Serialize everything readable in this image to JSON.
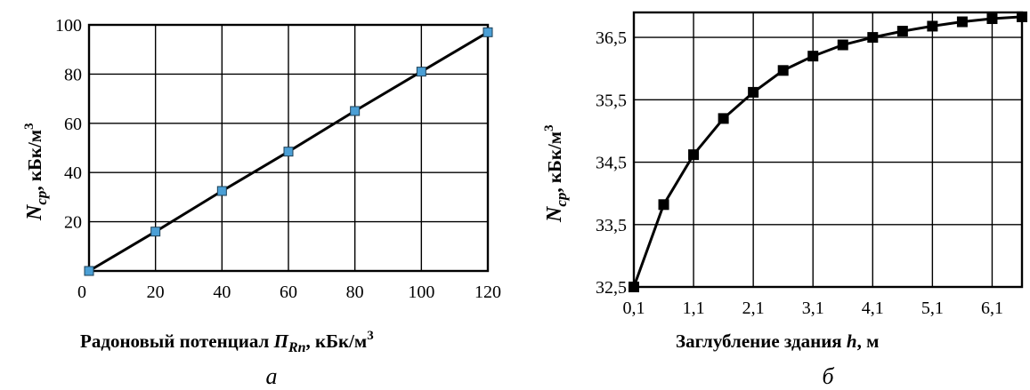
{
  "chart_data": [
    {
      "type": "line",
      "panel_label": "а",
      "xlabel_prefix": "Радоновый потенциал ",
      "xlabel_symbol": "П",
      "xlabel_subscript": "Rn",
      "xlabel_suffix": ", кБк/м",
      "xlabel_sup": "3",
      "ylabel_symbol": "N",
      "ylabel_subscript": "ср",
      "ylabel_suffix": ", кБк/м",
      "ylabel_sup": "3",
      "xlim": [
        0,
        120
      ],
      "ylim": [
        0,
        100
      ],
      "x_ticks": [
        0,
        20,
        40,
        60,
        80,
        100,
        120
      ],
      "x_tick_labels": [
        "0",
        "20",
        "40",
        "60",
        "80",
        "100",
        "120"
      ],
      "y_ticks": [
        20,
        40,
        60,
        80,
        100
      ],
      "y_tick_labels": [
        "20",
        "40",
        "60",
        "80",
        "100"
      ],
      "grid": true,
      "marker": "square",
      "marker_color": "#4b9fd5",
      "line_color": "#000000",
      "series": [
        {
          "x": [
            0,
            20,
            40,
            60,
            80,
            100,
            120
          ],
          "y": [
            0,
            16,
            32.5,
            48.5,
            65,
            81,
            97
          ]
        }
      ]
    },
    {
      "type": "line",
      "panel_label": "б",
      "xlabel_prefix": "Заглубление здания ",
      "xlabel_symbol": "h",
      "xlabel_suffix": ", м",
      "ylabel_symbol": "N",
      "ylabel_subscript": "ср",
      "ylabel_suffix": ", кБк/м",
      "ylabel_sup": "3",
      "xlim": [
        0.1,
        6.6
      ],
      "ylim": [
        32.5,
        36.9
      ],
      "x_ticks": [
        0.1,
        1.1,
        2.1,
        3.1,
        4.1,
        5.1,
        6.1
      ],
      "x_tick_labels": [
        "0,1",
        "1,1",
        "2,1",
        "3,1",
        "4,1",
        "5,1",
        "6,1"
      ],
      "y_ticks": [
        32.5,
        33.5,
        34.5,
        35.5,
        36.5
      ],
      "y_tick_labels": [
        "32,5",
        "33,5",
        "34,5",
        "35,5",
        "36,5"
      ],
      "grid": true,
      "marker": "square",
      "marker_color": "#000000",
      "line_color": "#000000",
      "series": [
        {
          "x": [
            0.1,
            0.6,
            1.1,
            1.6,
            2.1,
            2.6,
            3.1,
            3.6,
            4.1,
            4.6,
            5.1,
            5.6,
            6.1,
            6.6
          ],
          "y": [
            32.5,
            33.82,
            34.62,
            35.2,
            35.62,
            35.97,
            36.2,
            36.38,
            36.5,
            36.6,
            36.68,
            36.75,
            36.8,
            36.83
          ]
        }
      ]
    }
  ]
}
